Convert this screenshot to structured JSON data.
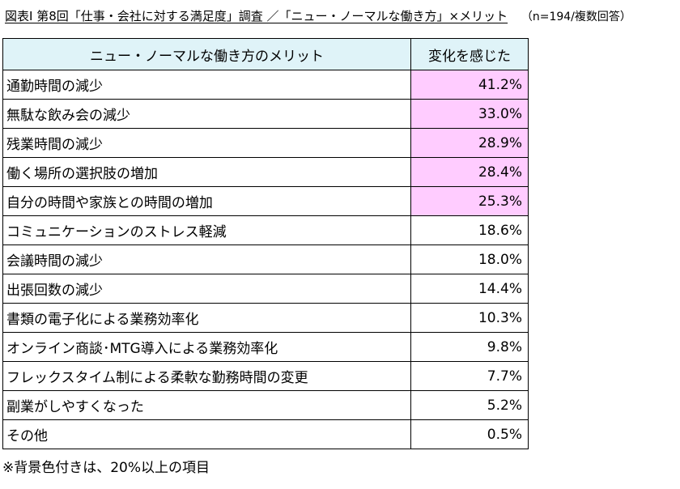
{
  "title": {
    "prefix": "図表I 第8回「仕事・会社に対する満足度」調査 ／「ニュー・ノーマルな働き方」×メリット",
    "note": "（n=194/複数回答）"
  },
  "table": {
    "headers": [
      "ニュー・ノーマルな働き方のメリット",
      "変化を感じた"
    ],
    "rows": [
      {
        "item": "通勤時間の減少",
        "value": "41.2%",
        "highlight": true
      },
      {
        "item": "無駄な飲み会の減少",
        "value": "33.0%",
        "highlight": true
      },
      {
        "item": "残業時間の減少",
        "value": "28.9%",
        "highlight": true
      },
      {
        "item": "働く場所の選択肢の増加",
        "value": "28.4%",
        "highlight": true
      },
      {
        "item": "自分の時間や家族との時間の増加",
        "value": "25.3%",
        "highlight": true
      },
      {
        "item": "コミュニケーションのストレス軽減",
        "value": "18.6%",
        "highlight": false
      },
      {
        "item": "会議時間の減少",
        "value": "18.0%",
        "highlight": false
      },
      {
        "item": "出張回数の減少",
        "value": "14.4%",
        "highlight": false
      },
      {
        "item": "書類の電子化による業務効率化",
        "value": "10.3%",
        "highlight": false
      },
      {
        "item": "オンライン商談･MTG導入による業務効率化",
        "value": "9.8%",
        "highlight": false
      },
      {
        "item": "フレックスタイム制による柔軟な勤務時間の変更",
        "value": "7.7%",
        "highlight": false
      },
      {
        "item": "副業がしやすくなった",
        "value": "5.2%",
        "highlight": false
      },
      {
        "item": "その他",
        "value": "0.5%",
        "highlight": false
      }
    ]
  },
  "footnote": "※背景色付きは、20%以上の項目",
  "colors": {
    "header_bg": "#dff3f8",
    "highlight_bg": "#ffccff",
    "border": "#000000"
  }
}
